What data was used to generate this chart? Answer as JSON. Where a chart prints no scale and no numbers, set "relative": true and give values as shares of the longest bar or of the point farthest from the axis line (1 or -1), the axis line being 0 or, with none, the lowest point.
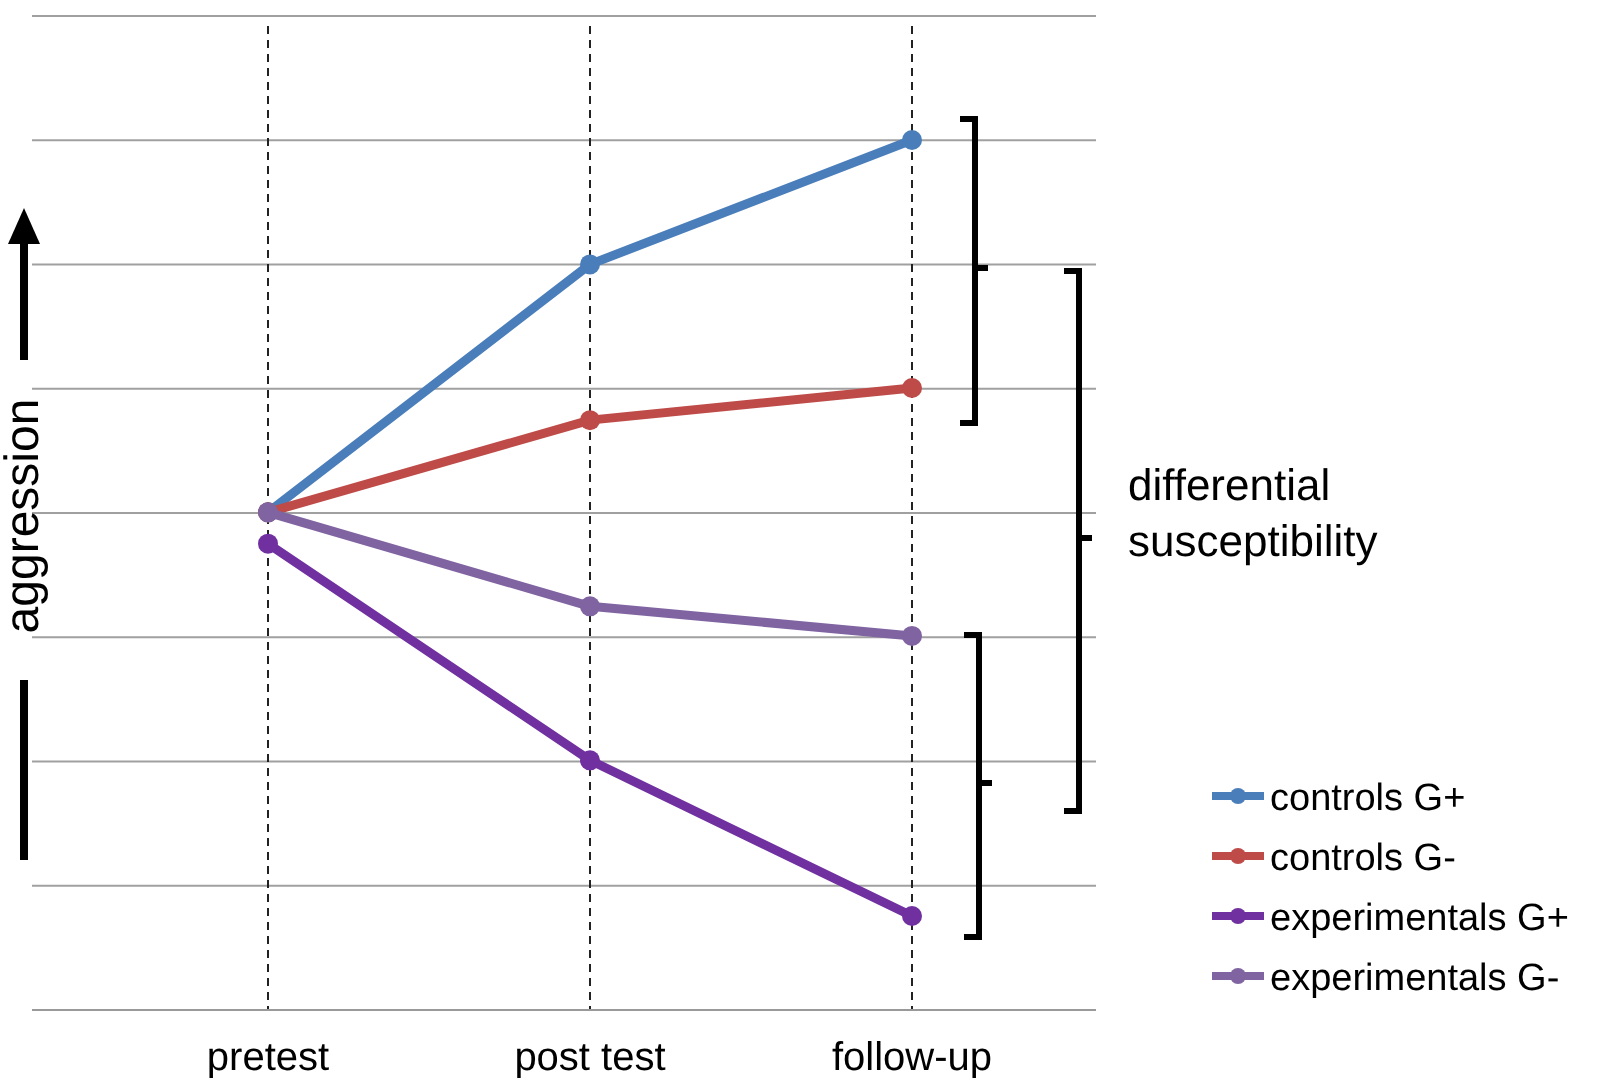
{
  "chart_data": {
    "type": "line",
    "ylabel": "aggression",
    "relative": true,
    "categories": [
      "pretest",
      "post test",
      "follow-up"
    ],
    "series": [
      {
        "name": "controls G+",
        "color": "#4a7ebb",
        "values": [
          0.572,
          0.857,
          1
        ]
      },
      {
        "name": "controls G-",
        "color": "#be4b48",
        "values": [
          0.572,
          0.678,
          0.715
        ]
      },
      {
        "name": "experimentals G+",
        "color": "#7030a0",
        "values": [
          0.536,
          0.287,
          0.108
        ]
      },
      {
        "name": "experimentals G-",
        "color": "#8064a2",
        "values": [
          0.572,
          0.464,
          0.43
        ]
      }
    ],
    "annotations": [
      "differential\nsusceptibility"
    ],
    "grid": true,
    "legend": "bottom right",
    "marker": "circle",
    "line_style": "solid"
  }
}
